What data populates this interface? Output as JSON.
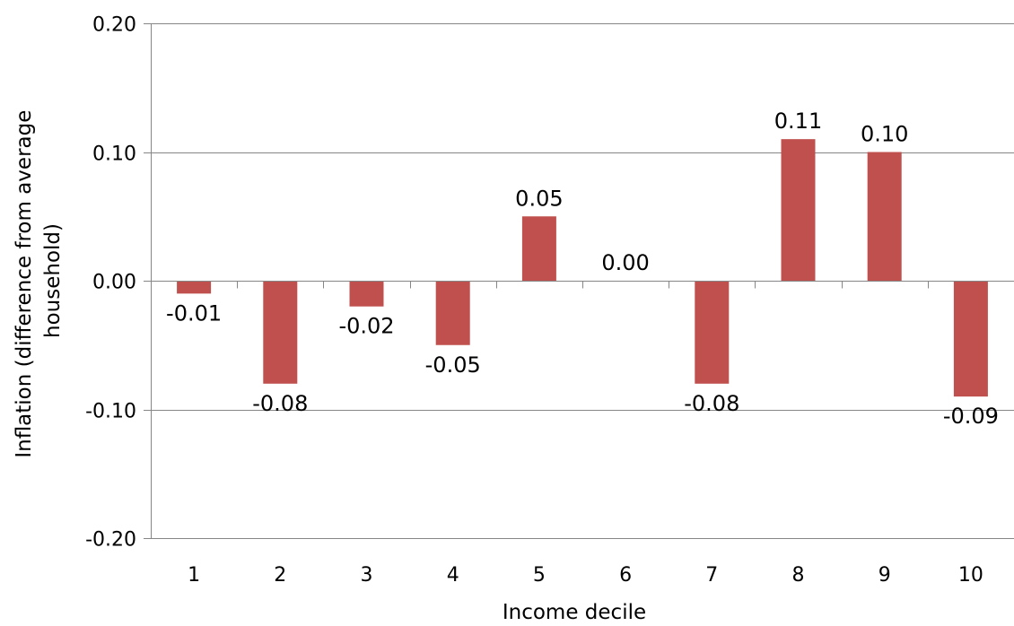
{
  "chart_data": {
    "type": "bar",
    "title": "",
    "xlabel": "Income decile",
    "ylabel_lines": [
      "Inflation (difference from average",
      "household)"
    ],
    "categories": [
      "1",
      "2",
      "3",
      "4",
      "5",
      "6",
      "7",
      "8",
      "9",
      "10"
    ],
    "values": [
      -0.01,
      -0.08,
      -0.02,
      -0.05,
      0.05,
      0.0,
      -0.08,
      0.11,
      0.1,
      -0.09
    ],
    "data_labels": [
      "-0.01",
      "-0.08",
      "-0.02",
      "-0.05",
      "0.05",
      "0.00",
      "-0.08",
      "0.11",
      "0.10",
      "-0.09"
    ],
    "ylim": [
      -0.2,
      0.2
    ],
    "yticks": [
      0.2,
      0.1,
      0.0,
      -0.1,
      -0.2
    ],
    "ytick_labels": [
      "0.20",
      "0.10",
      "0.00",
      "-0.10",
      "-0.20"
    ],
    "grid": true,
    "legend": "none",
    "bar_color": "#c0504d",
    "gridline_color": "#868686",
    "axis_color": "#868686"
  }
}
